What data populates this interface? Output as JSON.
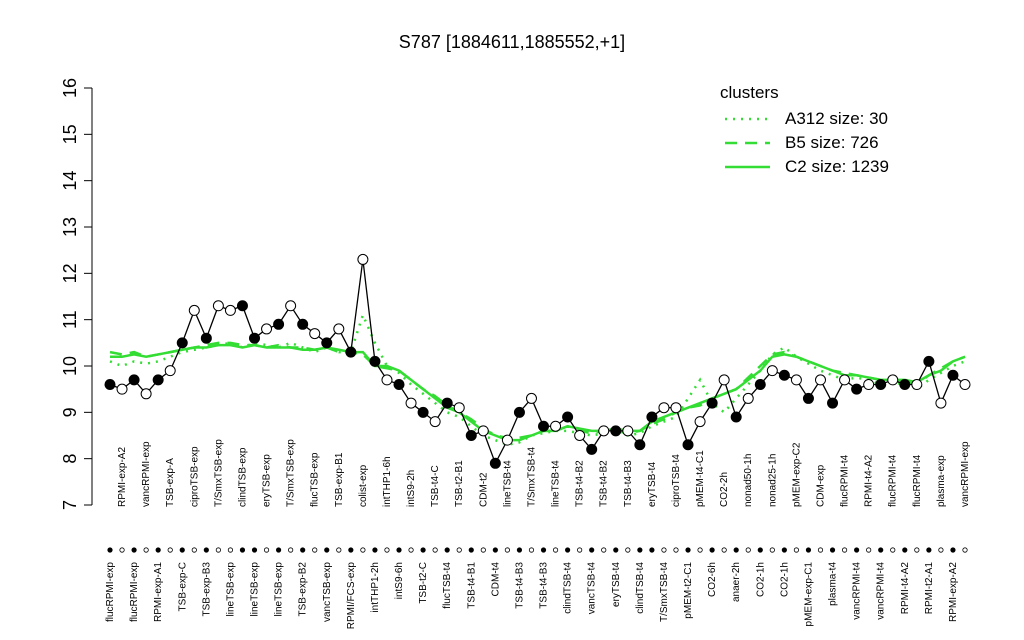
{
  "chart_data": {
    "type": "line",
    "title": "S787 [1884611,1885552,+1]",
    "ylim": [
      7,
      16
    ],
    "yticks": [
      7,
      8,
      9,
      10,
      11,
      12,
      13,
      14,
      15,
      16
    ],
    "legend_title": "clusters",
    "legend": "top right",
    "categories": [
      "flucRPMI-exp",
      "RPMI-exp-A2",
      "flucRPMI-exp",
      "vancRPMI-exp",
      "RPMI-exp-A1",
      "TSB-exp-A",
      "TSB-exp-C",
      "ciproTSB-exp",
      "TSB-exp-B3",
      "T/SmxTSB-exp",
      "lineTSB-exp",
      "clindTSB-exp",
      "lineTSB-exp",
      "eryTSB-exp",
      "lineTSB-exp",
      "T/SmxTSB-exp",
      "TSB-exp-B2",
      "flucTSB-exp",
      "vancTSB-exp",
      "TSB-exp-B1",
      "RPMI/FCS-exp",
      "colist-exp",
      "intTHP1-2h",
      "intTHP1-6h",
      "intS9-6h",
      "intS9-2h",
      "TSB-t2-C",
      "TSB-t4-C",
      "flucTSB-t4",
      "TSB-t2-B1",
      "TSB-t4-B1",
      "CDM-t2",
      "CDM-t4",
      "lineTSB-t4",
      "TSB-t4-B3",
      "T/SmxTSB-t4",
      "TSB-t4-B3",
      "lineTSB-t4",
      "clindTSB-t4",
      "TSB-t4-B2",
      "vancTSB-t4",
      "TSB-t4-B2",
      "eryTSB-t4",
      "TSB-t4-B3",
      "clindTSB-t4",
      "eryTSB-t4",
      "T/SmxTSB-t4",
      "ciproTSB-t4",
      "pMEM-t2-C1",
      "pMEM-t4-C1",
      "CO2-6h",
      "CO2-2h",
      "anaer-2h",
      "nonad50-1h",
      "CO2-1h",
      "nonad25-1h",
      "CO2-1h",
      "pMEM-exp-C2",
      "pMEM-exp-C1",
      "CDM-exp",
      "plasma-t4",
      "flucRPMI-t4",
      "vancRPMI-t4",
      "RPMI-t4-A2",
      "vancRPMI-t4",
      "flucRPMI-t4",
      "RPMI-t4-A2",
      "flucRPMI-t4",
      "RPMI-t2-A1",
      "plasma-exp",
      "RPMI-exp-A2",
      "vancRPMI-exp"
    ],
    "points": {
      "color": "#000000",
      "values": [
        9.6,
        9.5,
        9.7,
        9.4,
        9.7,
        9.9,
        10.5,
        11.2,
        10.6,
        11.3,
        11.2,
        11.3,
        10.6,
        10.8,
        10.9,
        11.3,
        10.9,
        10.7,
        10.5,
        10.8,
        10.3,
        12.3,
        10.1,
        9.7,
        9.6,
        9.2,
        9.0,
        8.8,
        9.2,
        9.1,
        8.5,
        8.6,
        7.9,
        8.4,
        9.0,
        9.3,
        8.7,
        8.7,
        8.9,
        8.5,
        8.2,
        8.6,
        8.6,
        8.6,
        8.3,
        8.9,
        9.1,
        9.1,
        8.3,
        8.8,
        9.2,
        9.7,
        8.9,
        9.3,
        9.6,
        9.9,
        9.8,
        9.7,
        9.3,
        9.7,
        9.2,
        9.7,
        9.5,
        9.6,
        9.6,
        9.7,
        9.6,
        9.6,
        10.1,
        9.2,
        9.8,
        9.6
      ],
      "fills": [
        "black",
        "white",
        "black",
        "white",
        "black",
        "white",
        "black",
        "white",
        "black",
        "white",
        "white",
        "black",
        "black",
        "white",
        "black",
        "white",
        "black",
        "white",
        "black",
        "white",
        "black",
        "white",
        "black",
        "white",
        "black",
        "white",
        "black",
        "white",
        "black",
        "white",
        "black",
        "white",
        "black",
        "white",
        "black",
        "white",
        "black",
        "white",
        "black",
        "white",
        "black",
        "white",
        "black",
        "white",
        "black",
        "black",
        "white",
        "white",
        "black",
        "white",
        "black",
        "white",
        "black",
        "white",
        "black",
        "white",
        "black",
        "white",
        "black",
        "white",
        "black",
        "white",
        "black",
        "white",
        "black",
        "white",
        "black",
        "white",
        "black",
        "white",
        "black",
        "white"
      ]
    },
    "series": [
      {
        "name": "A312 size: 30",
        "color": "#33dd33",
        "style": "dotted",
        "values": [
          10.1,
          10.0,
          10.1,
          10.05,
          10.1,
          10.2,
          10.3,
          10.35,
          10.4,
          10.45,
          10.5,
          10.4,
          10.5,
          10.45,
          10.4,
          10.5,
          10.4,
          10.3,
          10.4,
          10.3,
          10.3,
          11.1,
          10.5,
          10.0,
          9.85,
          9.6,
          9.4,
          9.2,
          9.0,
          8.9,
          8.7,
          8.5,
          8.4,
          8.3,
          8.35,
          8.5,
          8.55,
          8.6,
          8.6,
          8.55,
          8.5,
          8.55,
          8.6,
          8.5,
          8.55,
          8.7,
          8.8,
          8.9,
          9.3,
          9.7,
          9.2,
          9.0,
          9.3,
          9.6,
          9.9,
          10.25,
          10.4,
          10.2,
          10.05,
          9.9,
          9.8,
          9.7,
          9.75,
          9.7,
          9.6,
          9.65,
          9.6,
          9.5,
          9.7,
          9.85,
          10.0,
          10.1
        ]
      },
      {
        "name": "B5 size: 726",
        "color": "#33dd33",
        "style": "dashed",
        "values": [
          10.3,
          10.25,
          10.3,
          10.2,
          10.25,
          10.3,
          10.35,
          10.4,
          10.45,
          10.5,
          10.5,
          10.45,
          10.45,
          10.4,
          10.45,
          10.4,
          10.4,
          10.35,
          10.4,
          10.3,
          10.3,
          10.25,
          10.0,
          9.95,
          9.9,
          9.7,
          9.5,
          9.35,
          9.15,
          9.0,
          8.85,
          8.65,
          8.5,
          8.45,
          8.45,
          8.5,
          8.6,
          8.6,
          8.7,
          8.6,
          8.55,
          8.6,
          8.6,
          8.55,
          8.6,
          8.75,
          8.85,
          9.0,
          9.1,
          9.15,
          9.3,
          9.4,
          9.5,
          9.75,
          10.0,
          10.25,
          10.3,
          10.2,
          10.1,
          10.0,
          9.9,
          9.85,
          9.8,
          9.75,
          9.7,
          9.7,
          9.65,
          9.6,
          9.8,
          9.95,
          10.1,
          10.2
        ]
      },
      {
        "name": "C2 size: 1239",
        "color": "#33dd33",
        "style": "solid",
        "values": [
          10.2,
          10.2,
          10.25,
          10.2,
          10.25,
          10.3,
          10.35,
          10.4,
          10.4,
          10.45,
          10.45,
          10.4,
          10.45,
          10.4,
          10.4,
          10.4,
          10.35,
          10.35,
          10.4,
          10.35,
          10.3,
          10.3,
          10.0,
          10.0,
          9.9,
          9.7,
          9.5,
          9.3,
          9.1,
          9.0,
          8.8,
          8.6,
          8.5,
          8.4,
          8.4,
          8.5,
          8.6,
          8.6,
          8.7,
          8.65,
          8.6,
          8.6,
          8.65,
          8.6,
          8.6,
          8.8,
          8.9,
          9.0,
          9.1,
          9.2,
          9.3,
          9.4,
          9.5,
          9.7,
          9.9,
          10.2,
          10.25,
          10.2,
          10.1,
          10.0,
          9.9,
          9.8,
          9.8,
          9.75,
          9.7,
          9.7,
          9.7,
          9.65,
          9.8,
          9.9,
          10.1,
          10.2
        ]
      }
    ]
  }
}
